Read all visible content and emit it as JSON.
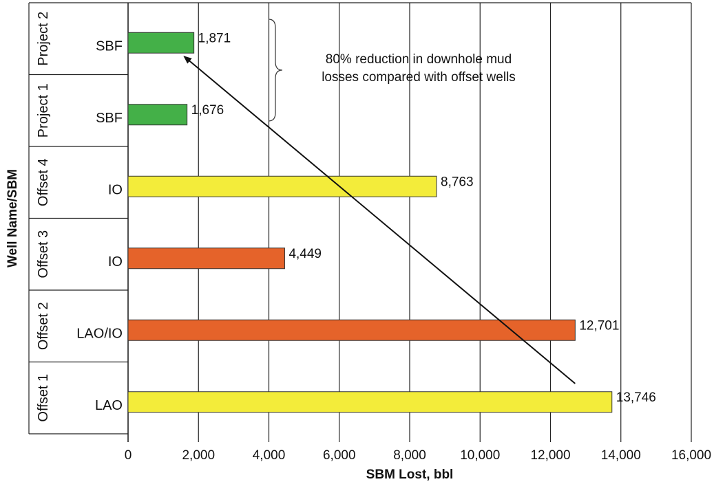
{
  "chart_data": {
    "type": "bar",
    "orientation": "horizontal",
    "xlabel": "SBM Lost, bbl",
    "ylabel": "Well Name/SBM",
    "xlim": [
      0,
      16000
    ],
    "xticks": [
      "0",
      "2,000",
      "4,000",
      "6,000",
      "8,000",
      "10,000",
      "12,000",
      "14,000",
      "16,000"
    ],
    "grid": "vertical",
    "categories": [
      {
        "well": "Project 2",
        "sbm": "SBF",
        "value": 1871,
        "label": "1,871",
        "color": "#44b048"
      },
      {
        "well": "Project 1",
        "sbm": "SBF",
        "value": 1676,
        "label": "1,676",
        "color": "#44b048"
      },
      {
        "well": "Offset 4",
        "sbm": "IO",
        "value": 8763,
        "label": "8,763",
        "color": "#f3ec3a"
      },
      {
        "well": "Offset 3",
        "sbm": "IO",
        "value": 4449,
        "label": "4,449",
        "color": "#e5632a"
      },
      {
        "well": "Offset 2",
        "sbm": "LAO/IO",
        "value": 12701,
        "label": "12,701",
        "color": "#e5632a"
      },
      {
        "well": "Offset 1",
        "sbm": "LAO",
        "value": 13746,
        "label": "13,746",
        "color": "#f3ec3a"
      }
    ],
    "annotation": {
      "lines": [
        "80% reduction in downhole mud",
        "losses compared with offset wells"
      ],
      "arrow_from": {
        "x": 12700,
        "row": 5.3
      },
      "arrow_to": {
        "x": 1600,
        "row": 0.75
      }
    }
  }
}
